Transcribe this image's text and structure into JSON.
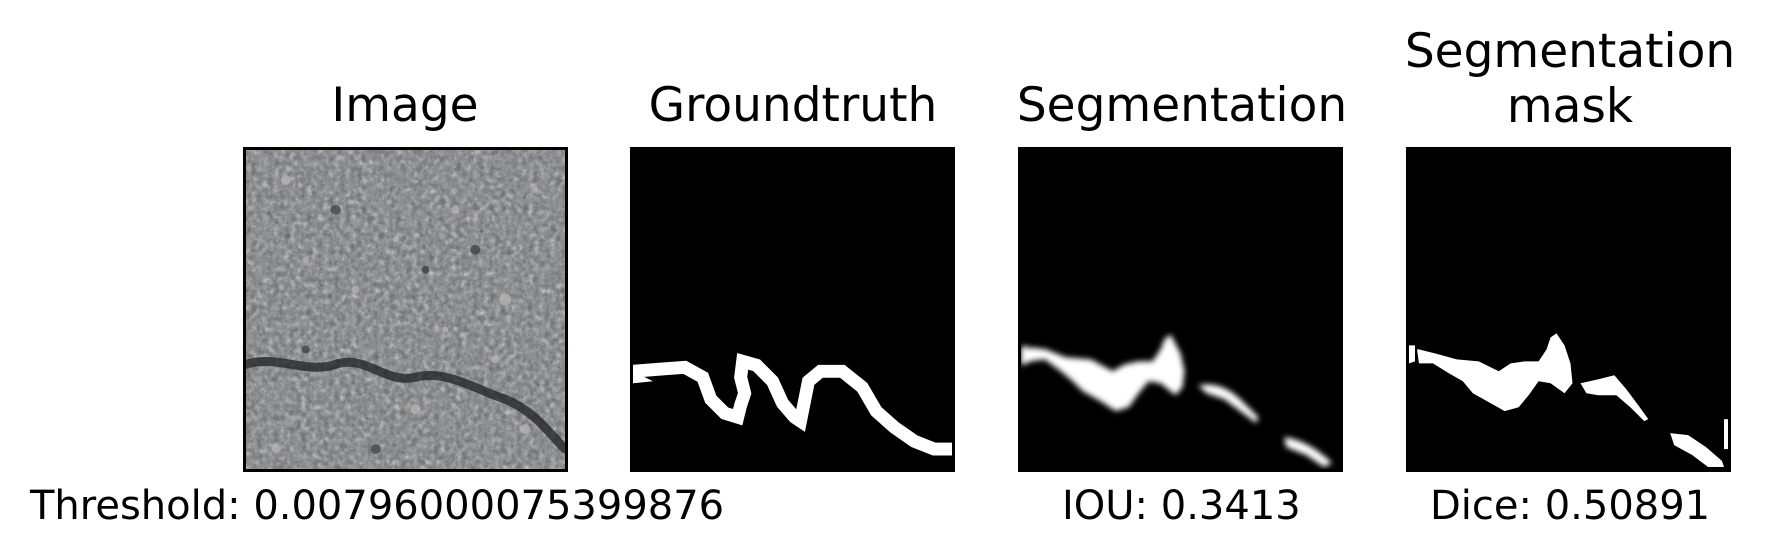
{
  "panels": [
    {
      "title": "Image",
      "kind": "photo"
    },
    {
      "title": "Groundtruth",
      "kind": "mask"
    },
    {
      "title": "Segmentation",
      "kind": "soft-mask"
    },
    {
      "title": "Segmentation\nmask",
      "kind": "mask"
    }
  ],
  "captions": {
    "threshold": "Threshold: 0.00796000075399876",
    "iou": "IOU: 0.3413",
    "dice": "Dice: 0.50891"
  },
  "colors": {
    "background": "#ffffff",
    "mask_background": "#000000",
    "mask_foreground": "#ffffff",
    "asphalt": "#6f7173"
  }
}
